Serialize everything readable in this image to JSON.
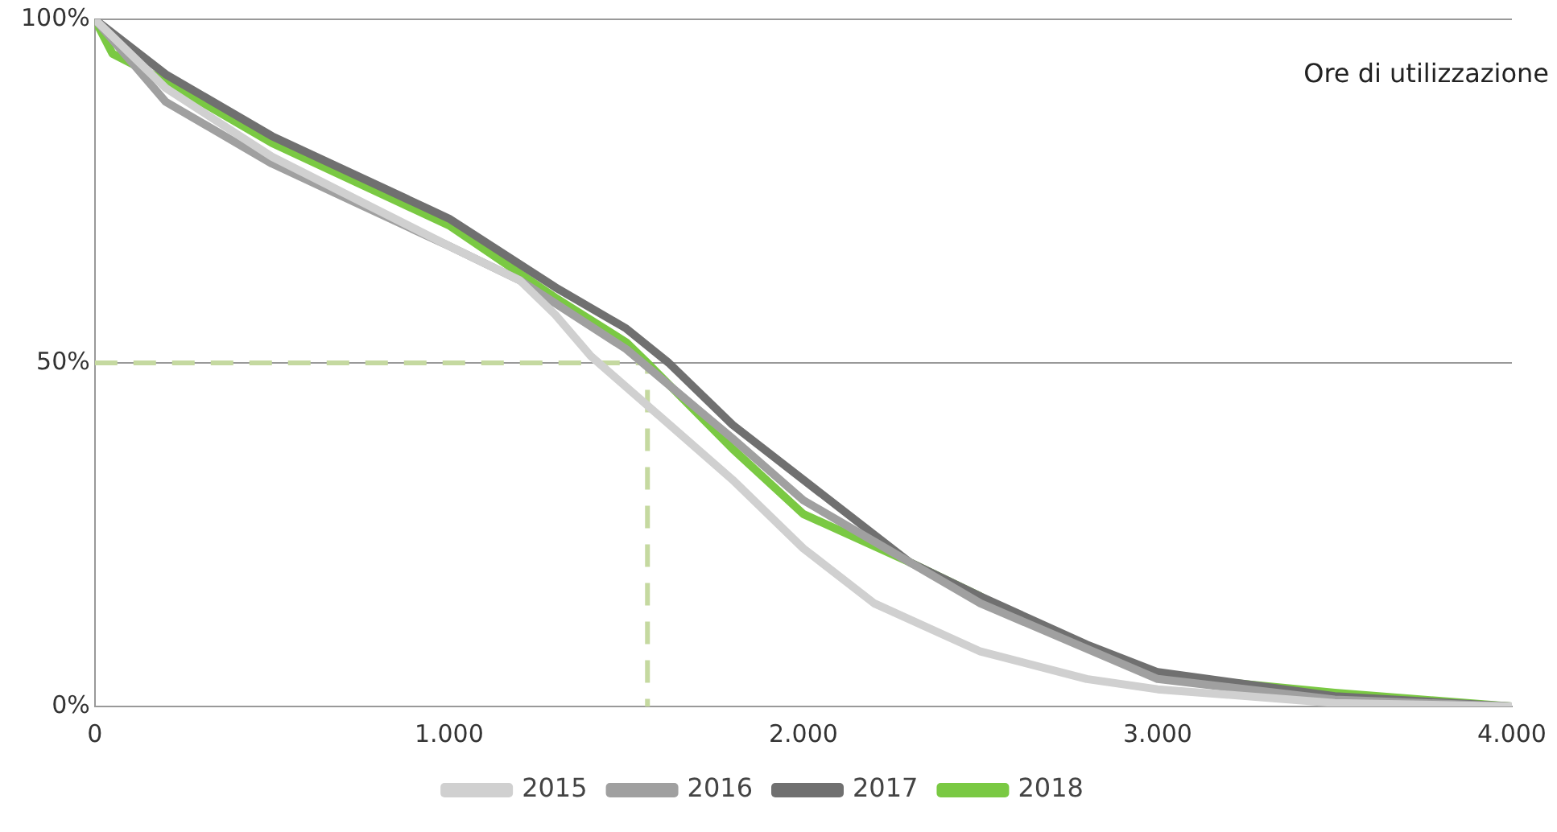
{
  "chart_data": {
    "type": "line",
    "annotations": [
      "Ore di utilizzazione"
    ],
    "series": [
      {
        "name": "2015",
        "color": "#d0d0d0",
        "x": [
          0,
          200,
          500,
          1000,
          1200,
          1300,
          1400,
          1600,
          1800,
          2000,
          2200,
          2500,
          2800,
          3000,
          3500,
          4000
        ],
        "values": [
          100,
          90,
          80,
          67,
          62,
          57,
          51,
          42,
          33,
          23,
          15,
          8,
          4,
          2.5,
          0.5,
          0
        ]
      },
      {
        "name": "2016",
        "color": "#a0a0a0",
        "x": [
          0,
          200,
          500,
          1000,
          1200,
          1500,
          1800,
          2000,
          2500,
          3000,
          3500,
          4000
        ],
        "values": [
          100,
          88,
          79,
          67,
          62,
          52,
          39,
          30,
          15,
          4,
          1,
          0
        ]
      },
      {
        "name": "2017",
        "color": "#707070",
        "x": [
          0,
          200,
          500,
          1000,
          1300,
          1500,
          1620,
          1800,
          2000,
          2300,
          2500,
          2800,
          3000,
          3500,
          4000
        ],
        "values": [
          100,
          92,
          83,
          71,
          61,
          55,
          50,
          41,
          33,
          21,
          16,
          9,
          5,
          1.5,
          0
        ]
      },
      {
        "name": "2018",
        "color": "#7ac943",
        "x": [
          0,
          50,
          200,
          500,
          1000,
          1300,
          1500,
          1560,
          1800,
          2000,
          2300,
          2500,
          2650,
          3000,
          3500,
          4000
        ],
        "values": [
          100,
          95,
          91,
          82,
          70,
          59.5,
          53,
          50,
          37.5,
          28,
          21,
          16,
          12,
          4.5,
          2,
          0
        ]
      },
      {
        "color": "#c5d9a0",
        "line_style": "dashed",
        "x": [
          0,
          1560,
          1560
        ],
        "values": [
          50,
          50,
          0
        ]
      }
    ],
    "xlim": [
      0,
      4000
    ],
    "xticks": [
      0,
      {
        "value": 1000,
        "label": "1.000"
      },
      {
        "value": 2000,
        "label": "2.000"
      },
      {
        "value": 3000,
        "label": "3.000"
      },
      {
        "value": 4000,
        "label": "4.000"
      }
    ],
    "ylim": [
      0,
      100
    ],
    "yticks": [
      {
        "value": 0,
        "label": "0%"
      },
      {
        "value": 50,
        "label": "50%"
      },
      {
        "value": 100,
        "label": "100%"
      }
    ],
    "grid": "y",
    "legend": "bottom",
    "marker": "none"
  }
}
